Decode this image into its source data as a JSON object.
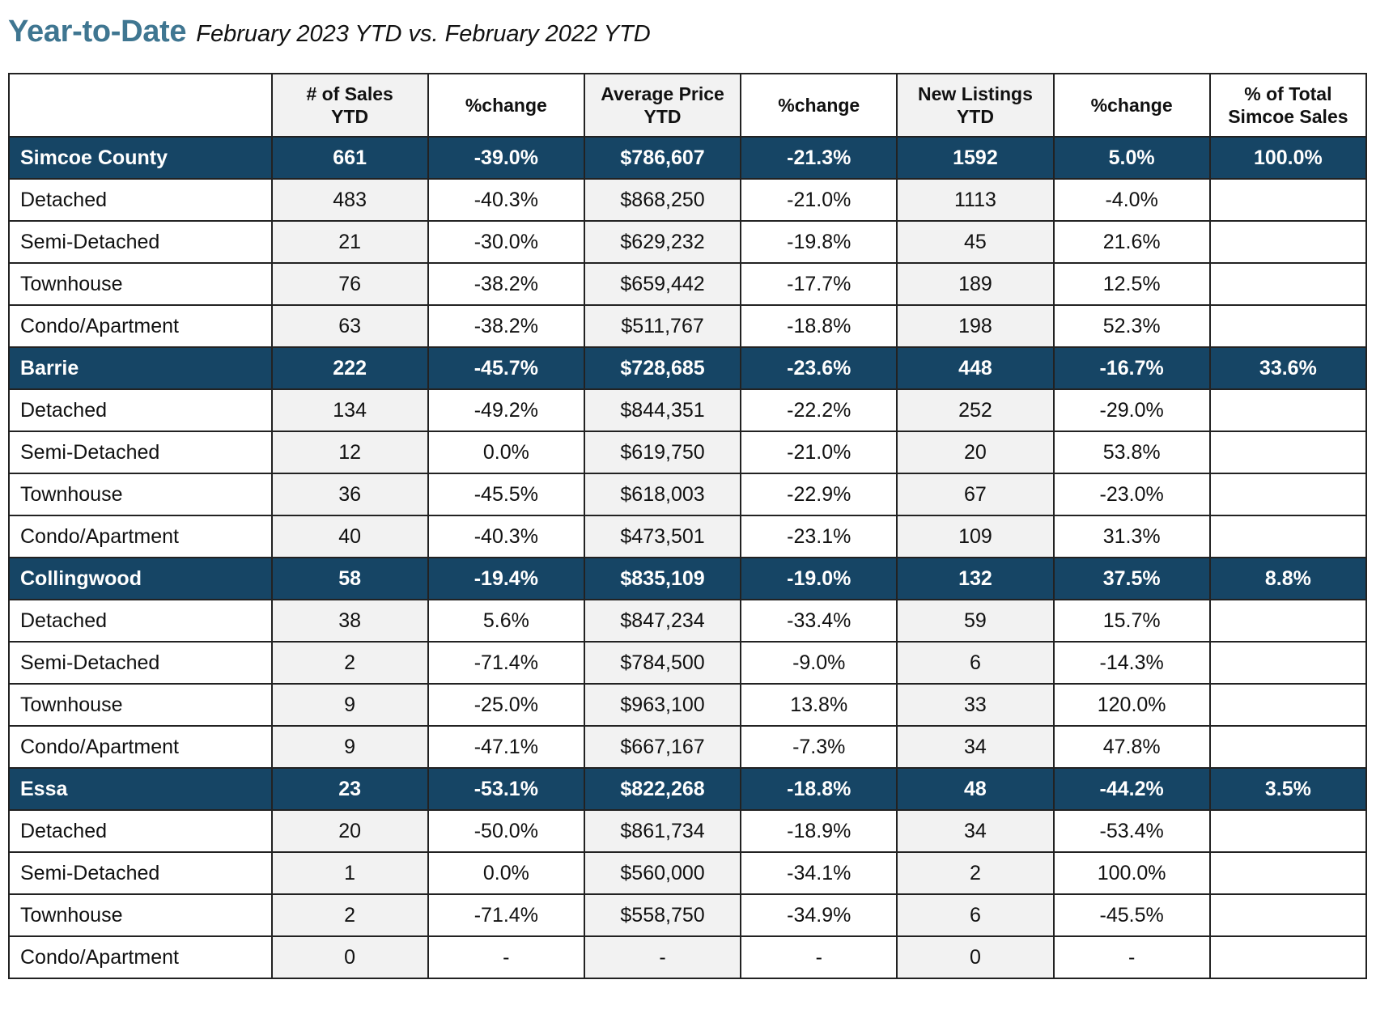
{
  "title": {
    "main": "Year-to-Date",
    "sub": "February 2023 YTD vs. February 2022 YTD"
  },
  "colors": {
    "title": "#3f7691",
    "region_row_bg": "#164565",
    "region_row_text": "#ffffff",
    "shaded_column_bg": "#f2f2f2"
  },
  "table": {
    "headers": [
      {
        "line1": "",
        "line2": ""
      },
      {
        "line1": "# of Sales",
        "line2": "YTD"
      },
      {
        "line1": "%change",
        "line2": ""
      },
      {
        "line1": "Average Price",
        "line2": "YTD"
      },
      {
        "line1": "%change",
        "line2": ""
      },
      {
        "line1": "New Listings",
        "line2": "YTD"
      },
      {
        "line1": "%change",
        "line2": ""
      },
      {
        "line1": "% of Total",
        "line2": "Simcoe Sales"
      }
    ],
    "rows": [
      {
        "type": "region",
        "cells": [
          "Simcoe County",
          "661",
          "-39.0%",
          "$786,607",
          "-21.3%",
          "1592",
          "5.0%",
          "100.0%"
        ]
      },
      {
        "type": "sub",
        "cells": [
          "Detached",
          "483",
          "-40.3%",
          "$868,250",
          "-21.0%",
          "1113",
          "-4.0%",
          ""
        ]
      },
      {
        "type": "sub",
        "cells": [
          "Semi-Detached",
          "21",
          "-30.0%",
          "$629,232",
          "-19.8%",
          "45",
          "21.6%",
          ""
        ]
      },
      {
        "type": "sub",
        "cells": [
          "Townhouse",
          "76",
          "-38.2%",
          "$659,442",
          "-17.7%",
          "189",
          "12.5%",
          ""
        ]
      },
      {
        "type": "sub",
        "cells": [
          "Condo/Apartment",
          "63",
          "-38.2%",
          "$511,767",
          "-18.8%",
          "198",
          "52.3%",
          ""
        ]
      },
      {
        "type": "region",
        "cells": [
          "Barrie",
          "222",
          "-45.7%",
          "$728,685",
          "-23.6%",
          "448",
          "-16.7%",
          "33.6%"
        ]
      },
      {
        "type": "sub",
        "cells": [
          "Detached",
          "134",
          "-49.2%",
          "$844,351",
          "-22.2%",
          "252",
          "-29.0%",
          ""
        ]
      },
      {
        "type": "sub",
        "cells": [
          "Semi-Detached",
          "12",
          "0.0%",
          "$619,750",
          "-21.0%",
          "20",
          "53.8%",
          ""
        ]
      },
      {
        "type": "sub",
        "cells": [
          "Townhouse",
          "36",
          "-45.5%",
          "$618,003",
          "-22.9%",
          "67",
          "-23.0%",
          ""
        ]
      },
      {
        "type": "sub",
        "cells": [
          "Condo/Apartment",
          "40",
          "-40.3%",
          "$473,501",
          "-23.1%",
          "109",
          "31.3%",
          ""
        ]
      },
      {
        "type": "region",
        "cells": [
          "Collingwood",
          "58",
          "-19.4%",
          "$835,109",
          "-19.0%",
          "132",
          "37.5%",
          "8.8%"
        ]
      },
      {
        "type": "sub",
        "cells": [
          "Detached",
          "38",
          "5.6%",
          "$847,234",
          "-33.4%",
          "59",
          "15.7%",
          ""
        ]
      },
      {
        "type": "sub",
        "cells": [
          "Semi-Detached",
          "2",
          "-71.4%",
          "$784,500",
          "-9.0%",
          "6",
          "-14.3%",
          ""
        ]
      },
      {
        "type": "sub",
        "cells": [
          "Townhouse",
          "9",
          "-25.0%",
          "$963,100",
          "13.8%",
          "33",
          "120.0%",
          ""
        ]
      },
      {
        "type": "sub",
        "cells": [
          "Condo/Apartment",
          "9",
          "-47.1%",
          "$667,167",
          "-7.3%",
          "34",
          "47.8%",
          ""
        ]
      },
      {
        "type": "region",
        "cells": [
          "Essa",
          "23",
          "-53.1%",
          "$822,268",
          "-18.8%",
          "48",
          "-44.2%",
          "3.5%"
        ]
      },
      {
        "type": "sub",
        "cells": [
          "Detached",
          "20",
          "-50.0%",
          "$861,734",
          "-18.9%",
          "34",
          "-53.4%",
          ""
        ]
      },
      {
        "type": "sub",
        "cells": [
          "Semi-Detached",
          "1",
          "0.0%",
          "$560,000",
          "-34.1%",
          "2",
          "100.0%",
          ""
        ]
      },
      {
        "type": "sub",
        "cells": [
          "Townhouse",
          "2",
          "-71.4%",
          "$558,750",
          "-34.9%",
          "6",
          "-45.5%",
          ""
        ]
      },
      {
        "type": "sub",
        "cells": [
          "Condo/Apartment",
          "0",
          "-",
          "-",
          "-",
          "0",
          "-",
          ""
        ]
      }
    ]
  }
}
